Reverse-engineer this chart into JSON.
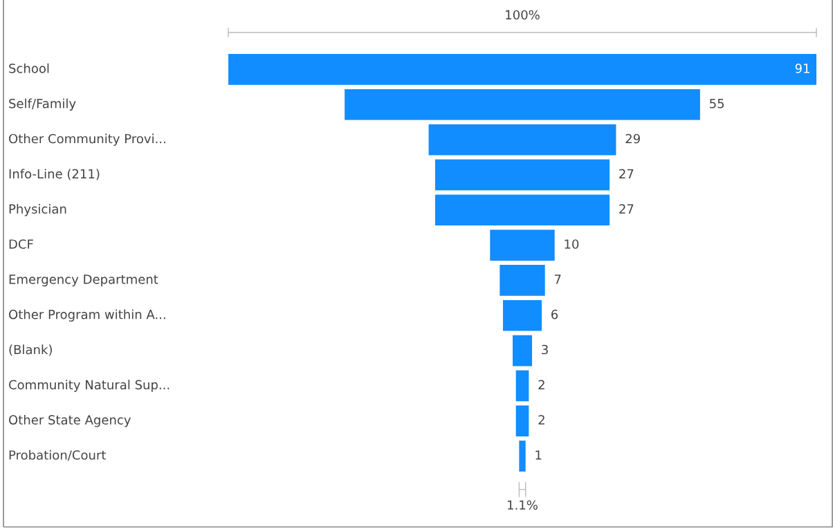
{
  "chart_data": {
    "type": "other",
    "categories": [
      "School",
      "Self/Family",
      "Other Community Provi...",
      "Info-Line (211)",
      "Physician",
      "DCF",
      "Emergency Department",
      "Other Program within A...",
      "(Blank)",
      "Community Natural Sup...",
      "Other State Agency",
      "Probation/Court"
    ],
    "values": [
      91,
      55,
      29,
      27,
      27,
      10,
      7,
      6,
      3,
      2,
      2,
      1
    ],
    "color": "#118dff",
    "data_labels": true,
    "annotations": [
      "100%",
      "1.1%"
    ]
  }
}
